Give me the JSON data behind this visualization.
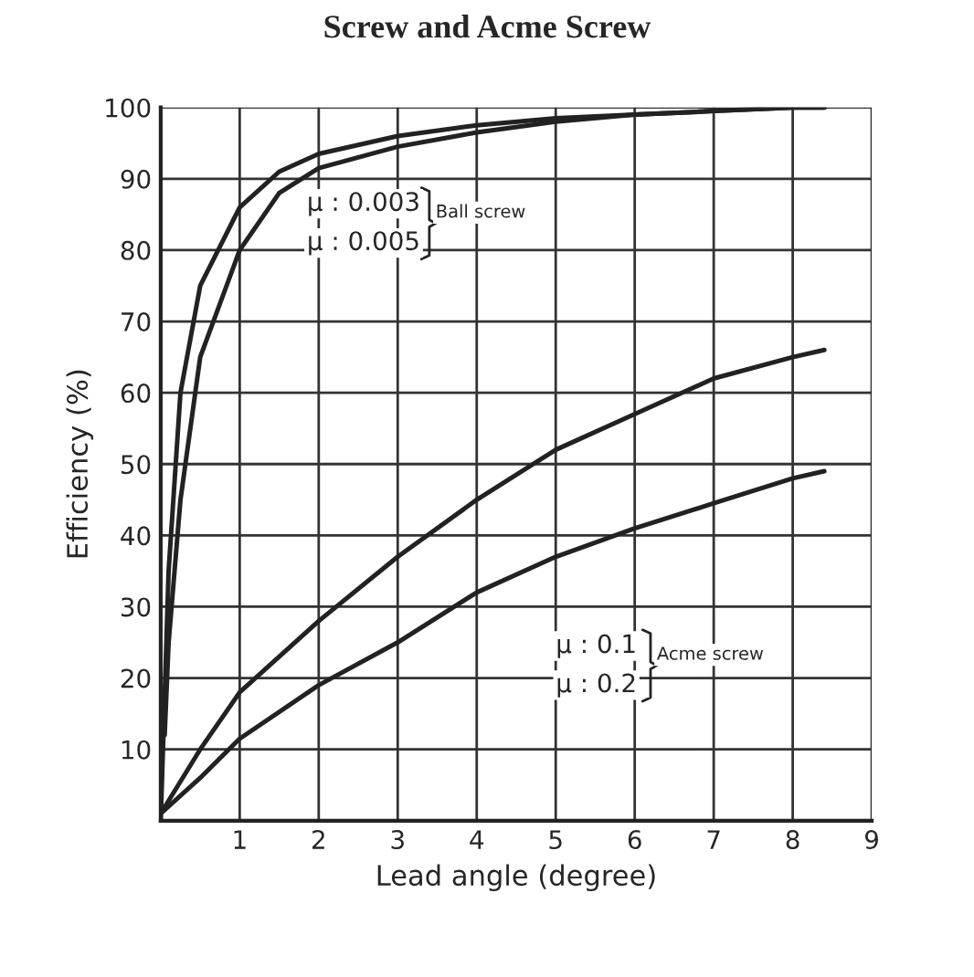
{
  "chart_data": {
    "type": "line",
    "title": "Screw and Acme Screw",
    "xlabel": "Lead angle (degree)",
    "ylabel": "Efficiency (%)",
    "xlim": [
      0,
      9
    ],
    "xticks": [
      1,
      2,
      3,
      4,
      5,
      6,
      7,
      8,
      9
    ],
    "ylim": [
      0,
      100
    ],
    "yticks": [
      10,
      20,
      30,
      40,
      50,
      60,
      70,
      80,
      90,
      100
    ],
    "grid": true,
    "series": [
      {
        "color": "#222222",
        "x": [
          0,
          0.1,
          0.25,
          0.5,
          1,
          1.5,
          2,
          3,
          4,
          5,
          6,
          7,
          8,
          8.4
        ],
        "values": [
          0,
          35,
          60,
          75,
          86,
          91,
          93.5,
          96,
          97.5,
          98.5,
          99,
          99.5,
          100,
          100
        ]
      },
      {
        "color": "#222222",
        "x": [
          0.05,
          0.1,
          0.25,
          0.5,
          1,
          1.5,
          2,
          3,
          4,
          5,
          6,
          7,
          8,
          8.4
        ],
        "values": [
          12,
          25,
          45,
          65,
          80,
          88,
          91.5,
          94.5,
          96.5,
          98,
          99,
          99.5,
          100,
          100
        ]
      },
      {
        "color": "#222222",
        "x": [
          0,
          0.5,
          1,
          1.5,
          2,
          3,
          4,
          5,
          6,
          7,
          8,
          8.4
        ],
        "values": [
          1,
          10,
          18,
          23,
          28,
          37,
          45,
          52,
          57,
          62,
          65,
          66
        ]
      },
      {
        "color": "#222222",
        "x": [
          0,
          0.5,
          1,
          2,
          3,
          4,
          5,
          6,
          7,
          8,
          8.4
        ],
        "values": [
          1,
          6,
          11.5,
          19,
          25,
          32,
          37,
          41,
          44.5,
          48,
          49
        ]
      }
    ],
    "annotations": [
      "μ : 0.003",
      "μ : 0.005",
      "Ball screw",
      "μ : 0.1",
      "μ : 0.2",
      "Acme screw"
    ]
  }
}
